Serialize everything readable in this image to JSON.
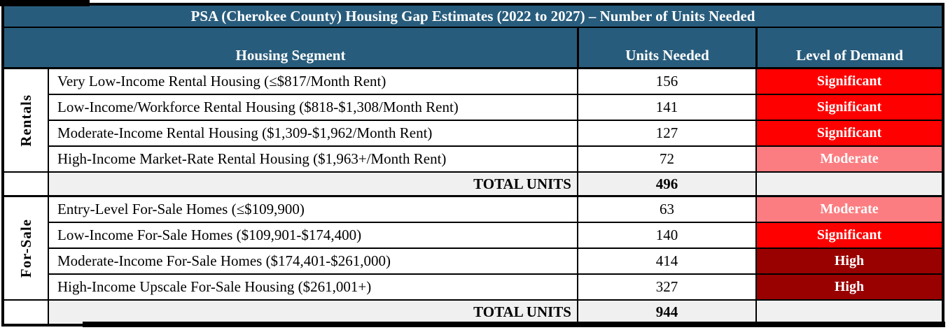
{
  "title": "PSA (Cherokee County) Housing Gap Estimates (2022 to 2027) – Number of Units Needed",
  "columns": {
    "segment": "Housing Segment",
    "units": "Units Needed",
    "demand": "Level of Demand"
  },
  "colors": {
    "header_blue": "#285C7C",
    "significant_red": "#FF0000",
    "moderate_pink": "#FC7D81",
    "high_dark_red": "#990000",
    "total_row_gray": "#F0F0F0"
  },
  "sections": [
    {
      "label": "Rentals",
      "rows": [
        {
          "segment": "Very Low-Income Rental Housing (≤$817/Month Rent)",
          "units": "156",
          "demand": "Significant",
          "demand_color": "#FF0000"
        },
        {
          "segment": "Low-Income/Workforce Rental Housing ($818-$1,308/Month Rent)",
          "units": "141",
          "demand": "Significant",
          "demand_color": "#FF0000"
        },
        {
          "segment": "Moderate-Income Rental Housing ($1,309-$1,962/Month Rent)",
          "units": "127",
          "demand": "Significant",
          "demand_color": "#FF0000"
        },
        {
          "segment": "High-Income Market-Rate Rental Housing ($1,963+/Month Rent)",
          "units": "72",
          "demand": "Moderate",
          "demand_color": "#FC7D81"
        }
      ],
      "total_label": "TOTAL UNITS",
      "total_units": "496"
    },
    {
      "label": "For-Sale",
      "rows": [
        {
          "segment": "Entry-Level For-Sale Homes (≤$109,900)",
          "units": "63",
          "demand": "Moderate",
          "demand_color": "#FC7D81"
        },
        {
          "segment": "Low-Income For-Sale Homes ($109,901-$174,400)",
          "units": "140",
          "demand": "Significant",
          "demand_color": "#FF0000"
        },
        {
          "segment": "Moderate-Income For-Sale Homes ($174,401-$261,000)",
          "units": "414",
          "demand": "High",
          "demand_color": "#990000"
        },
        {
          "segment": "High-Income Upscale For-Sale Housing ($261,001+)",
          "units": "327",
          "demand": "High",
          "demand_color": "#990000"
        }
      ],
      "total_label": "TOTAL UNITS",
      "total_units": "944"
    }
  ]
}
